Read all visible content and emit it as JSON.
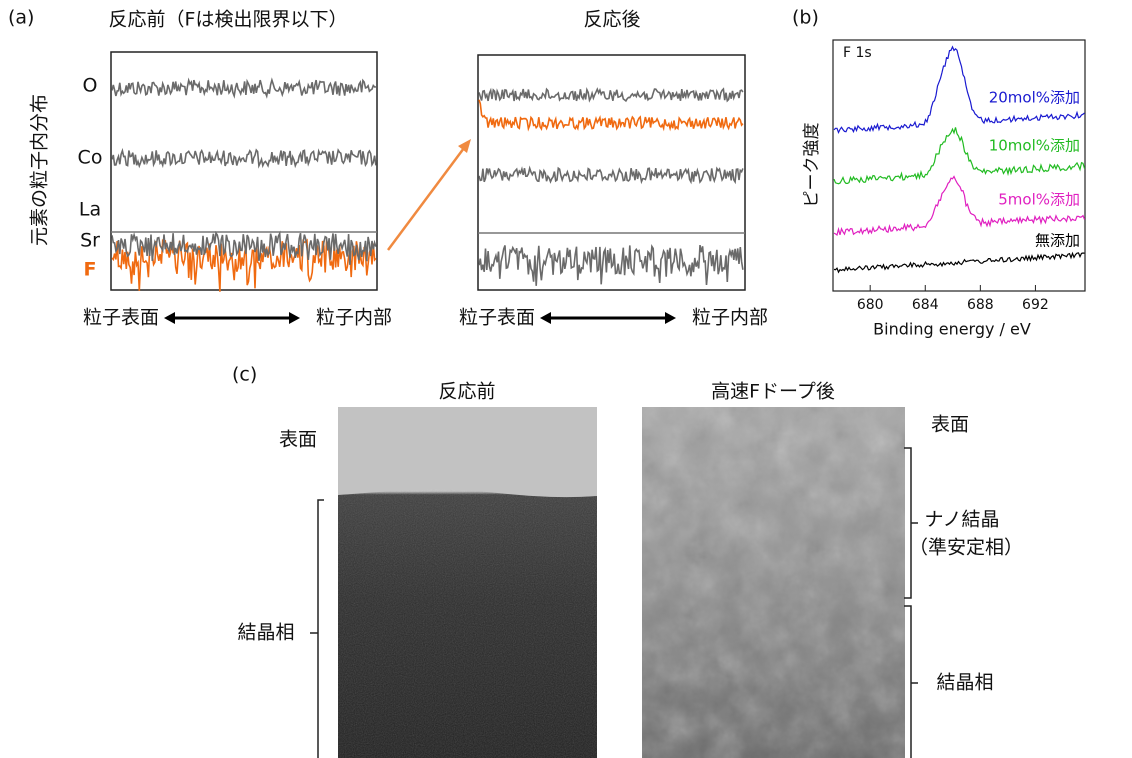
{
  "panel_a": {
    "label": "(a)",
    "before_title": "反応前（Fは検出限界以下）",
    "after_title": "反応後",
    "y_label": "元素の粒子内分布",
    "elements": [
      "O",
      "Co",
      "La",
      "Sr",
      "F"
    ],
    "x_left": "粒子表面",
    "x_right": "粒子内部"
  },
  "panel_b": {
    "label": "(b)",
    "annotation": "F 1s",
    "y_label": "ピーク強度",
    "x_label": "Binding energy / eV",
    "xlim": [
      677.3,
      695.6
    ],
    "xticks": [
      680,
      684,
      688,
      692
    ],
    "series": [
      {
        "name": "20mol%添加",
        "color": "#1a1ad0"
      },
      {
        "name": "10mol%添加",
        "color": "#22bb22"
      },
      {
        "name": "5mol%添加",
        "color": "#e020c0"
      },
      {
        "name": "無添加",
        "color": "#000000"
      }
    ]
  },
  "panel_c": {
    "label": "(c)",
    "before_title": "反応前",
    "after_title": "高速Fドープ後",
    "left": {
      "surface": "表面",
      "crystal": "結晶相"
    },
    "right": {
      "surface": "表面",
      "nano": "ナノ結晶",
      "meta": "（準安定相）",
      "crystal": "結晶相"
    }
  }
}
